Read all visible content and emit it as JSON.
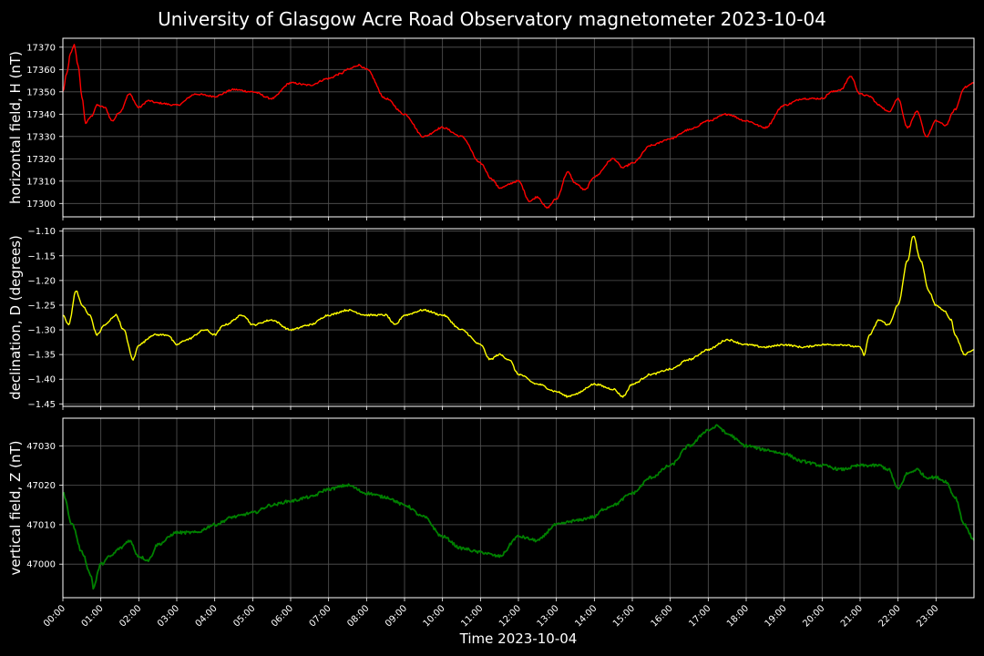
{
  "chart_data": {
    "type": "line",
    "title": "University of Glasgow Acre Road Observatory magnetometer 2023-10-04",
    "xlabel": "Time 2023-10-04",
    "x_ticks": [
      "00:00",
      "01:00",
      "02:00",
      "03:00",
      "04:00",
      "05:00",
      "06:00",
      "07:00",
      "08:00",
      "09:00",
      "10:00",
      "11:00",
      "12:00",
      "13:00",
      "14:00",
      "15:00",
      "16:00",
      "17:00",
      "18:00",
      "19:00",
      "20:00",
      "21:00",
      "22:00",
      "23:00"
    ],
    "xlim_hours": [
      0,
      24
    ],
    "grid": true,
    "background": "#000000",
    "panels": [
      {
        "ylabel": "horizontal field, H (nT)",
        "color": "#ff0000",
        "ylim": [
          17294,
          17374
        ],
        "yticks": [
          17300,
          17310,
          17320,
          17330,
          17340,
          17350,
          17360,
          17370
        ],
        "tick_labels": [
          "17300",
          "17310",
          "17320",
          "17330",
          "17340",
          "17350",
          "17360",
          "17370"
        ],
        "x": [
          0,
          0.1,
          0.2,
          0.3,
          0.4,
          0.5,
          0.6,
          0.75,
          0.9,
          1.1,
          1.3,
          1.5,
          1.75,
          2.0,
          2.25,
          2.5,
          3.0,
          3.5,
          4.0,
          4.5,
          5.0,
          5.5,
          6.0,
          6.5,
          7.0,
          7.3,
          7.5,
          7.8,
          8.0,
          8.5,
          9.0,
          9.5,
          10.0,
          10.5,
          11.0,
          11.3,
          11.5,
          12.0,
          12.3,
          12.5,
          12.75,
          13.0,
          13.3,
          13.5,
          13.75,
          14.0,
          14.5,
          14.75,
          15.0,
          15.5,
          16.0,
          16.5,
          17.0,
          17.5,
          18.0,
          18.5,
          19.0,
          19.5,
          20.0,
          20.25,
          20.5,
          20.75,
          21.0,
          21.25,
          21.5,
          21.75,
          22.0,
          22.25,
          22.5,
          22.75,
          23.0,
          23.25,
          23.5,
          23.75,
          24.0
        ],
        "y": [
          17350,
          17358,
          17367,
          17371,
          17362,
          17348,
          17336,
          17339,
          17344,
          17343,
          17337,
          17341,
          17349,
          17343,
          17346,
          17345,
          17344,
          17349,
          17348,
          17351,
          17350,
          17347,
          17354,
          17353,
          17356,
          17358,
          17360,
          17362,
          17360,
          17347,
          17340,
          17330,
          17334,
          17330,
          17318,
          17311,
          17307,
          17310,
          17301,
          17303,
          17298,
          17302,
          17314,
          17309,
          17306,
          17312,
          17320,
          17316,
          17318,
          17326,
          17329,
          17333,
          17337,
          17340,
          17337,
          17334,
          17344,
          17347,
          17347,
          17350,
          17351,
          17357,
          17349,
          17348,
          17344,
          17341,
          17347,
          17334,
          17341,
          17330,
          17337,
          17335,
          17342,
          17352,
          17354
        ]
      },
      {
        "ylabel": "declination, D (degrees)",
        "color": "#ffff00",
        "ylim": [
          -1.455,
          -1.095
        ],
        "yticks": [
          -1.45,
          -1.4,
          -1.35,
          -1.3,
          -1.25,
          -1.2,
          -1.15,
          -1.1
        ],
        "tick_labels": [
          "−1.45",
          "−1.40",
          "−1.35",
          "−1.30",
          "−1.25",
          "−1.20",
          "−1.15",
          "−1.10"
        ],
        "x": [
          0,
          0.15,
          0.35,
          0.5,
          0.7,
          0.9,
          1.1,
          1.4,
          1.6,
          1.85,
          2.0,
          2.4,
          2.75,
          3.0,
          3.25,
          3.75,
          4.0,
          4.25,
          4.75,
          5.0,
          5.5,
          6.0,
          6.5,
          7.0,
          7.5,
          8.0,
          8.5,
          8.75,
          9.0,
          9.5,
          10.0,
          10.5,
          11.0,
          11.25,
          11.5,
          11.75,
          12.0,
          12.5,
          13.0,
          13.3,
          13.5,
          14.0,
          14.5,
          14.75,
          15.0,
          15.5,
          16.0,
          16.5,
          17.0,
          17.5,
          18.0,
          18.5,
          19.0,
          19.5,
          20.0,
          20.5,
          21.0,
          21.1,
          21.25,
          21.5,
          21.75,
          22.0,
          22.25,
          22.4,
          22.6,
          22.8,
          23.0,
          23.2,
          23.4,
          23.5,
          23.75,
          24.0
        ],
        "y": [
          -1.27,
          -1.29,
          -1.22,
          -1.25,
          -1.27,
          -1.31,
          -1.29,
          -1.27,
          -1.3,
          -1.36,
          -1.33,
          -1.31,
          -1.31,
          -1.33,
          -1.32,
          -1.3,
          -1.31,
          -1.29,
          -1.27,
          -1.29,
          -1.28,
          -1.3,
          -1.29,
          -1.27,
          -1.26,
          -1.27,
          -1.27,
          -1.29,
          -1.27,
          -1.26,
          -1.27,
          -1.3,
          -1.33,
          -1.36,
          -1.35,
          -1.36,
          -1.39,
          -1.41,
          -1.425,
          -1.435,
          -1.43,
          -1.41,
          -1.42,
          -1.435,
          -1.41,
          -1.39,
          -1.38,
          -1.36,
          -1.34,
          -1.32,
          -1.33,
          -1.335,
          -1.33,
          -1.335,
          -1.33,
          -1.33,
          -1.335,
          -1.35,
          -1.31,
          -1.28,
          -1.29,
          -1.25,
          -1.16,
          -1.11,
          -1.16,
          -1.22,
          -1.25,
          -1.26,
          -1.28,
          -1.31,
          -1.35,
          -1.34
        ]
      },
      {
        "ylabel": "vertical field, Z (nT)",
        "color": "#008000",
        "ylim": [
          46991.5,
          47037
        ],
        "yticks": [
          47000,
          47010,
          47020,
          47030
        ],
        "tick_labels": [
          "47000",
          "47010",
          "47020",
          "47030"
        ],
        "x": [
          0,
          0.25,
          0.5,
          0.75,
          0.8,
          1.0,
          1.25,
          1.5,
          1.75,
          2.0,
          2.25,
          2.5,
          3.0,
          3.5,
          4.0,
          4.5,
          5.0,
          5.5,
          6.0,
          6.5,
          7.0,
          7.5,
          8.0,
          8.5,
          9.0,
          9.5,
          10.0,
          10.5,
          11.0,
          11.5,
          12.0,
          12.5,
          13.0,
          13.5,
          14.0,
          14.25,
          14.5,
          15.0,
          15.5,
          16.0,
          16.5,
          17.0,
          17.25,
          17.5,
          18.0,
          18.5,
          19.0,
          19.5,
          20.0,
          20.5,
          21.0,
          21.5,
          21.75,
          22.0,
          22.25,
          22.5,
          22.75,
          23.0,
          23.25,
          23.5,
          23.75,
          24.0
        ],
        "y": [
          47018,
          47010,
          47003,
          46997,
          46994,
          47000,
          47002,
          47004,
          47006,
          47002,
          47001,
          47005,
          47008,
          47008,
          47010,
          47012,
          47013,
          47015,
          47016,
          47017,
          47019,
          47020,
          47018,
          47017,
          47015,
          47012,
          47007,
          47004,
          47003,
          47002,
          47007,
          47006,
          47010,
          47011,
          47012,
          47014,
          47015,
          47018,
          47022,
          47025,
          47030,
          47034,
          47035,
          47033,
          47030,
          47029,
          47028,
          47026,
          47025,
          47024,
          47025,
          47025,
          47024,
          47019,
          47023,
          47024,
          47022,
          47022,
          47021,
          47017,
          47010,
          47006
        ]
      }
    ]
  }
}
